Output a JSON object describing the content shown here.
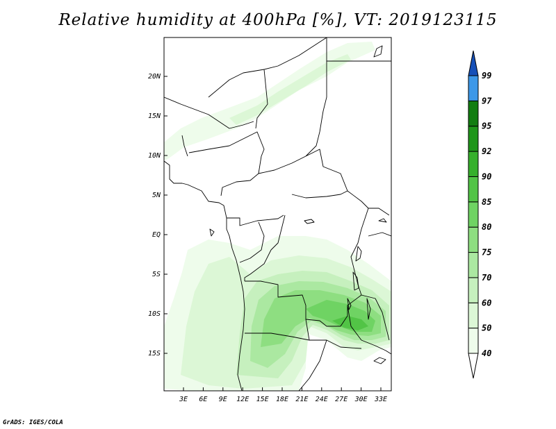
{
  "title": "Relative humidity at 400hPa [%], VT: 2019123115",
  "credit": "GrADS: IGES/COLA",
  "map": {
    "lon_ticks": [
      "3E",
      "6E",
      "9E",
      "12E",
      "15E",
      "18E",
      "21E",
      "24E",
      "27E",
      "30E",
      "33E"
    ],
    "lat_ticks": [
      "20N",
      "15N",
      "10N",
      "5N",
      "EQ",
      "5S",
      "10S",
      "15S"
    ]
  },
  "colorbar": {
    "levels": [
      "40",
      "50",
      "60",
      "70",
      "75",
      "80",
      "85",
      "90",
      "92",
      "95",
      "97",
      "99"
    ],
    "colors": [
      "#ffffff",
      "#eefceb",
      "#dcf7d6",
      "#c6f0be",
      "#abe8a1",
      "#8ede81",
      "#6fd363",
      "#52c446",
      "#36b02c",
      "#1f961a",
      "#127d11",
      "#3d98e8",
      "#2574d8",
      "#1650b8"
    ]
  }
}
